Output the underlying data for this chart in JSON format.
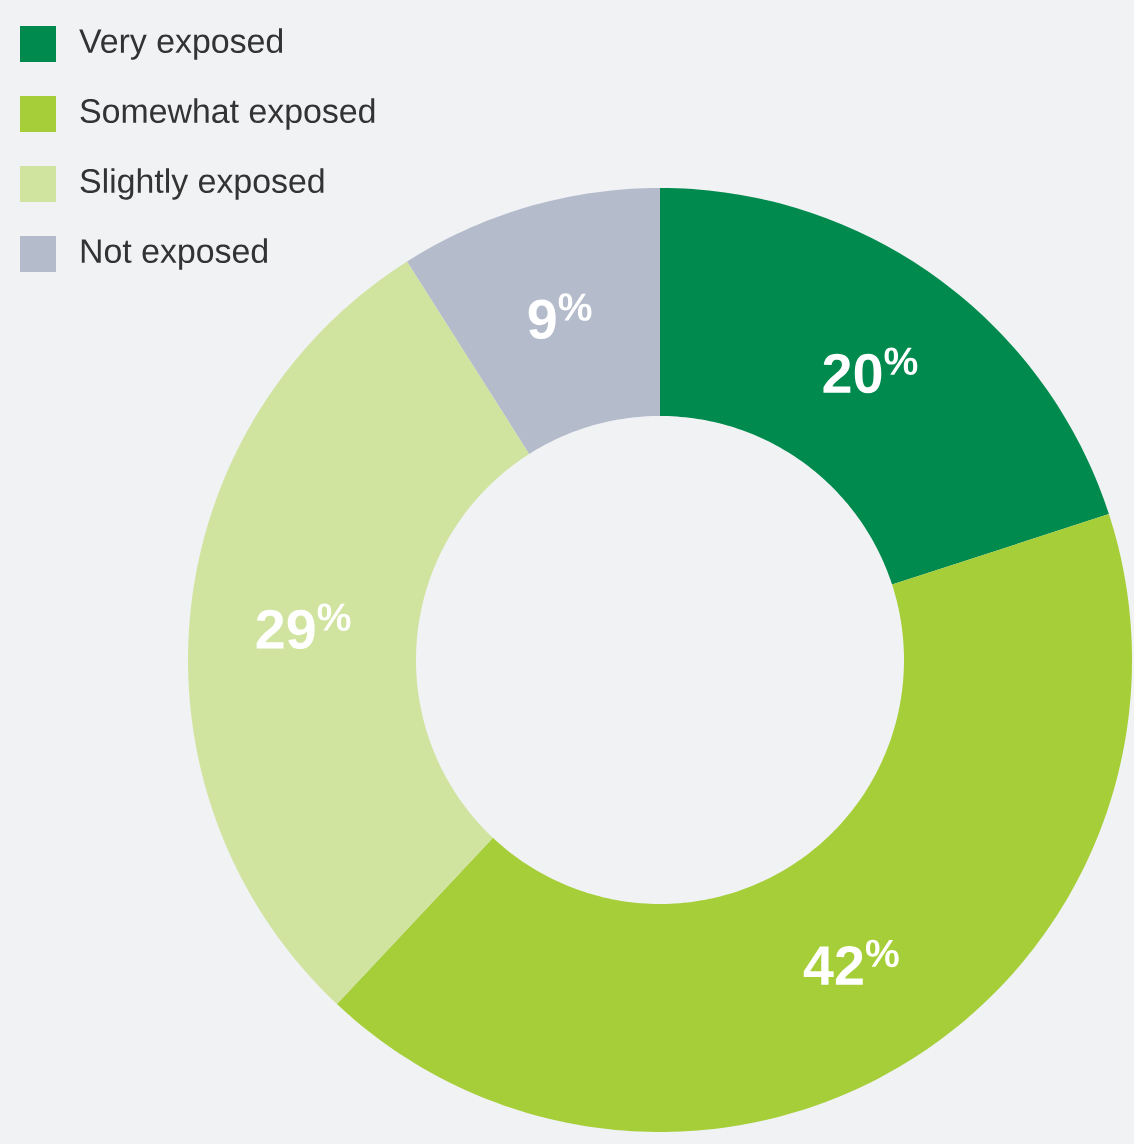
{
  "chart_data": {
    "type": "donut",
    "categories": [
      "Very exposed",
      "Somewhat exposed",
      "Slightly exposed",
      "Not exposed"
    ],
    "values": [
      20,
      42,
      29,
      9
    ],
    "colors": [
      "#008a4e",
      "#a6ce39",
      "#d0e4a0",
      "#b4bccc"
    ],
    "value_labels": [
      "20$^{%}$",
      "42$^{%}$",
      "29$^{%}$",
      "9$^{%}$"
    ],
    "legend": "top left"
  }
}
